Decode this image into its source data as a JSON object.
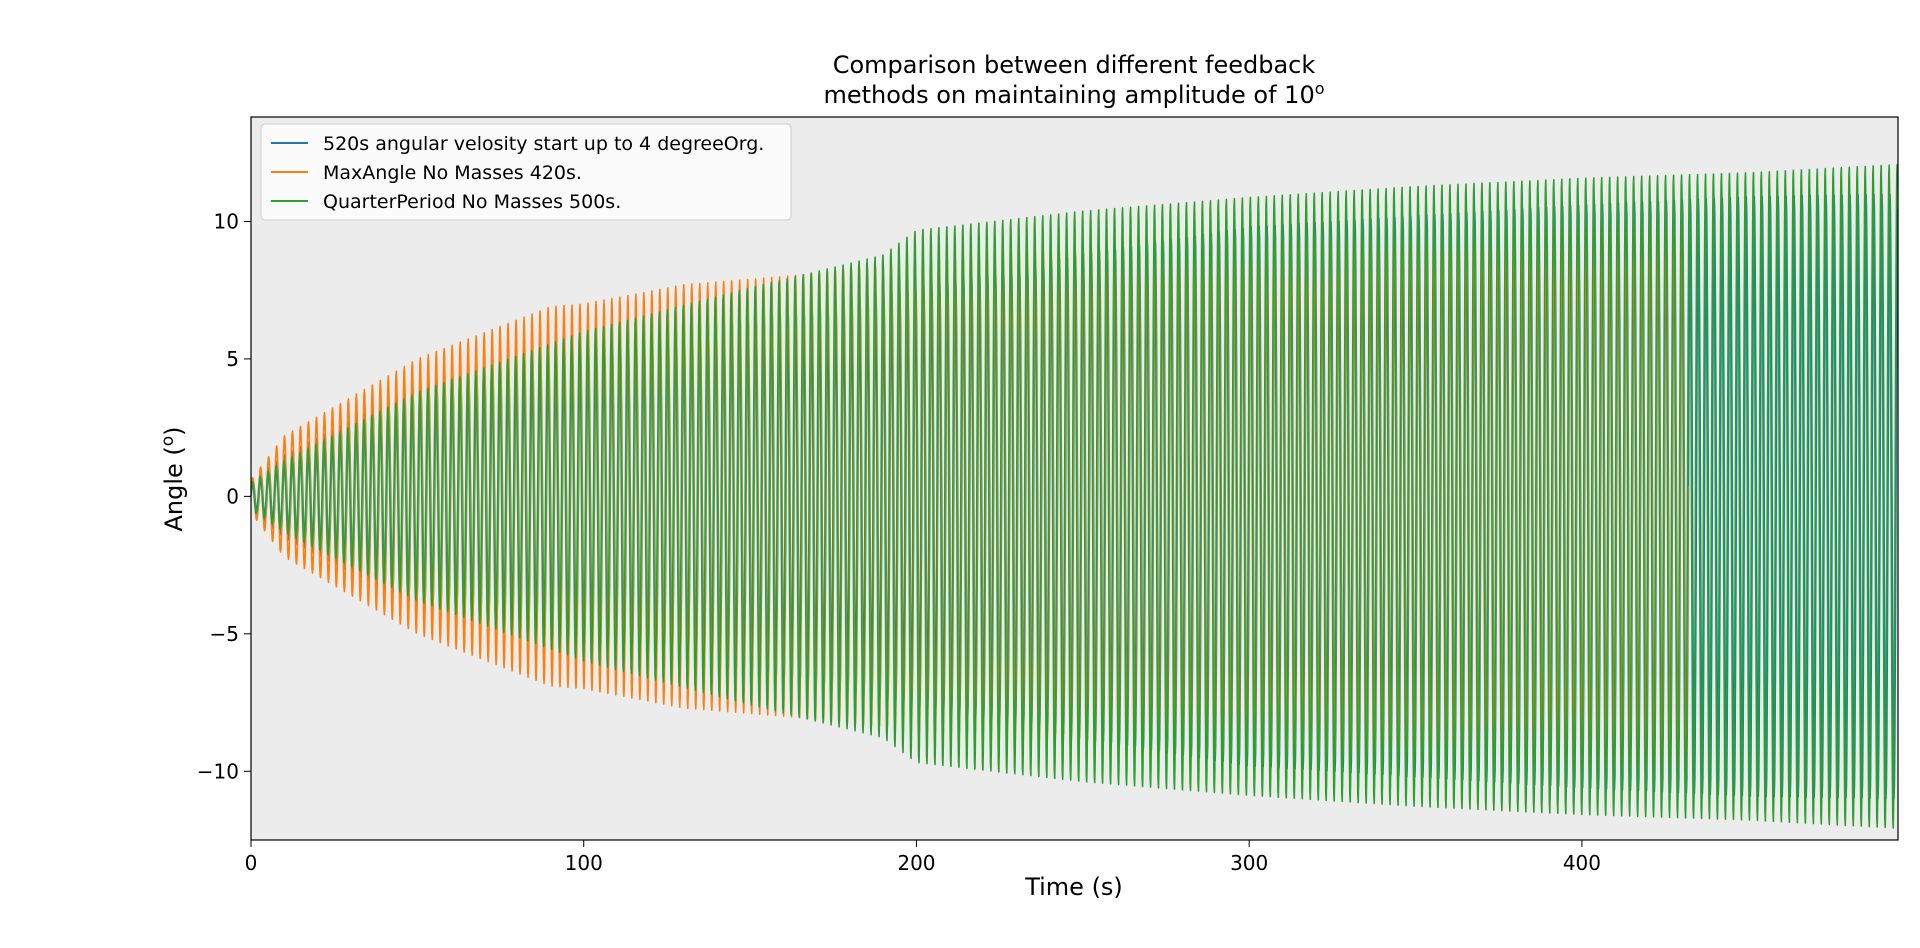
{
  "chart_data": {
    "type": "line",
    "title_line1": "Comparison between different feedback",
    "title_line2_prefix": "methods on maintaining amplitude of 10",
    "title_line2_sup": "o",
    "xlabel": "Time (s)",
    "ylabel_prefix": "Angle (",
    "ylabel_sup": "o",
    "ylabel_suffix": ")",
    "xlim": [
      0,
      495
    ],
    "ylim": [
      -12.5,
      13.8
    ],
    "xticks": [
      0,
      100,
      200,
      300,
      400
    ],
    "xtick_labels": [
      "0",
      "100",
      "200",
      "300",
      "400"
    ],
    "yticks": [
      10,
      5,
      0,
      -5,
      -10
    ],
    "ytick_labels": [
      "10",
      "5",
      "0",
      "−5",
      "−10"
    ],
    "background_color": "#ececec",
    "grid": false,
    "legend_position": "upper-left",
    "series": [
      {
        "name": "520s angular velosity start up to 4 degreeOrg.",
        "color": "#1f77b4",
        "period": 2.4,
        "end": 495,
        "envelope_t": [
          0,
          10,
          50,
          100,
          150,
          200,
          250,
          300,
          350,
          400,
          450,
          495
        ],
        "envelope_amp": [
          0.5,
          1.5,
          4.0,
          5.6,
          6.5,
          7.6,
          8.8,
          9.8,
          10.2,
          10.6,
          10.9,
          11.0
        ]
      },
      {
        "name": "MaxAngle No Masses 420s.",
        "color": "#ff7f0e",
        "period": 2.4,
        "end": 432,
        "envelope_t": [
          0,
          10,
          50,
          90,
          100,
          130,
          160,
          200,
          250,
          300,
          350,
          400,
          432
        ],
        "envelope_amp": [
          0.6,
          2.2,
          5.0,
          6.9,
          7.0,
          7.7,
          8.0,
          8.5,
          9.2,
          9.5,
          9.8,
          10.2,
          10.5
        ]
      },
      {
        "name": "QuarterPeriod No Masses 500s.",
        "color": "#2ca02c",
        "period": 2.4,
        "end": 495,
        "envelope_t": [
          0,
          10,
          50,
          100,
          150,
          190,
          200,
          250,
          300,
          350,
          400,
          450,
          495
        ],
        "envelope_amp": [
          0.5,
          1.3,
          3.8,
          6.0,
          7.6,
          8.8,
          9.7,
          10.4,
          10.9,
          11.3,
          11.6,
          11.8,
          12.1
        ]
      }
    ]
  }
}
